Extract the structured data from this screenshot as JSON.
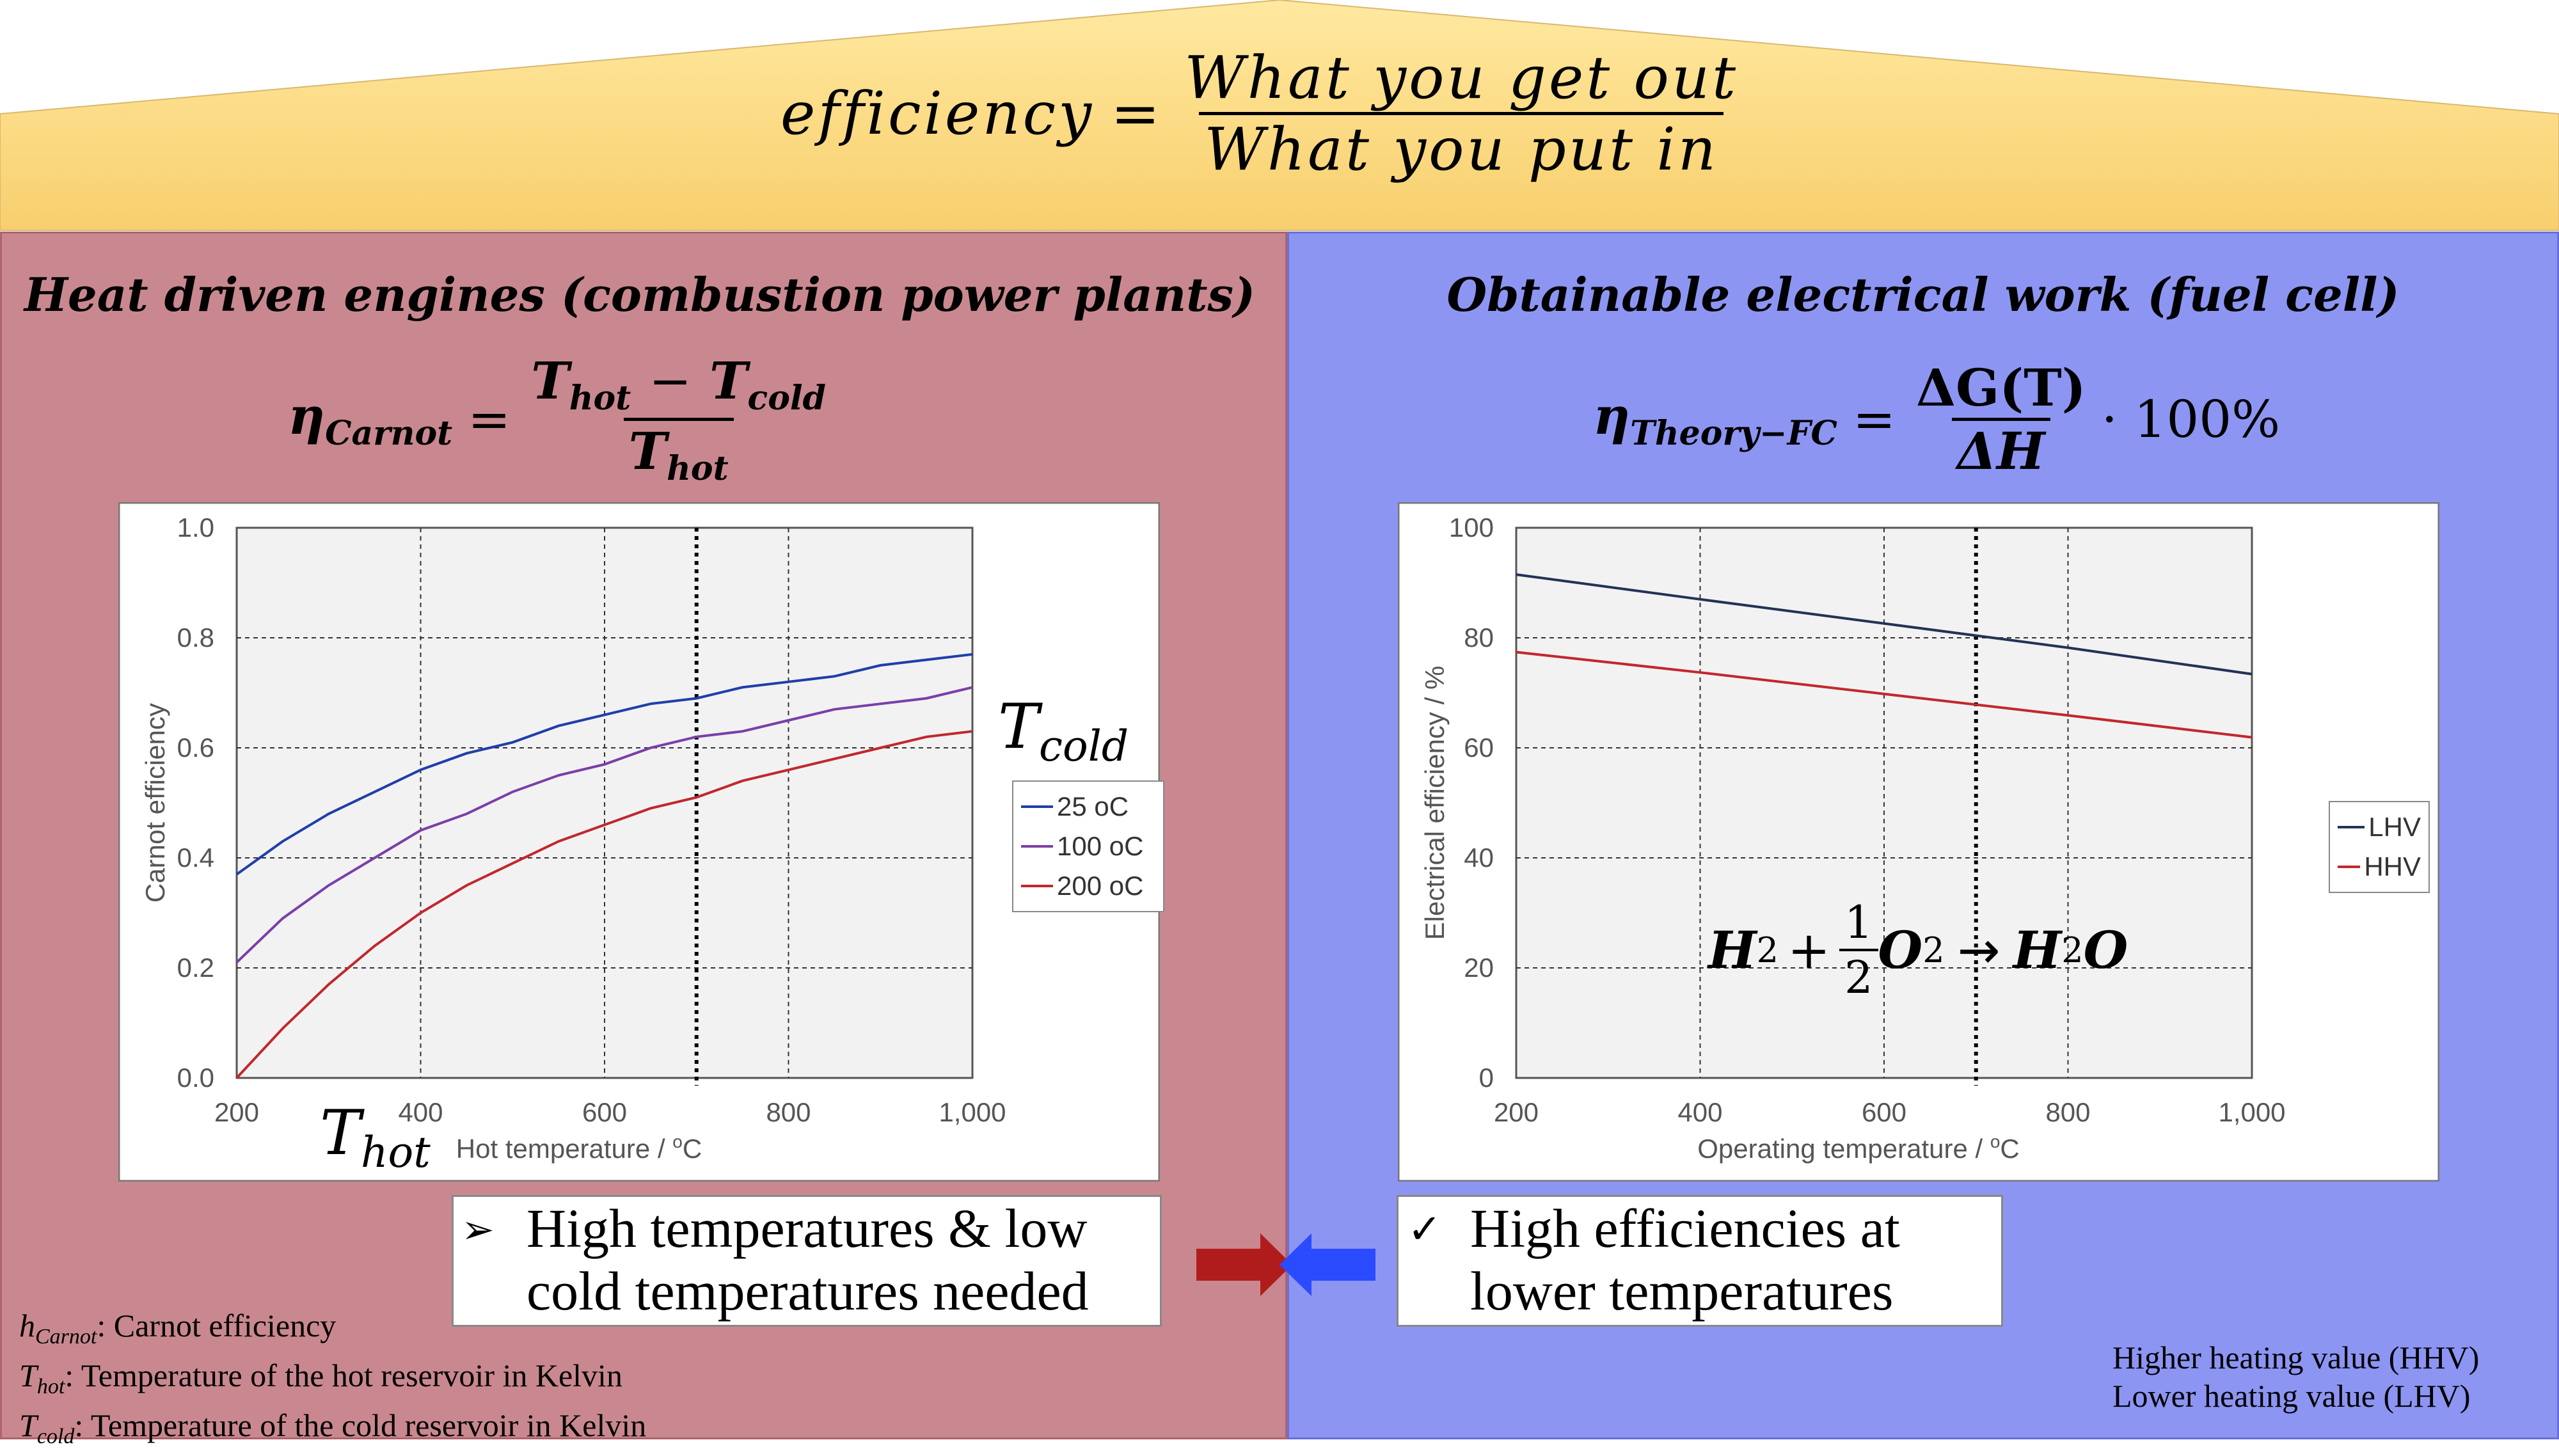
{
  "colors": {
    "banner_top": "#ffe9a0",
    "banner_bottom": "#f8cf6e",
    "left_panel": "#c9888f",
    "right_panel": "#8d95f3",
    "plot_bg": "#f2f2f2",
    "series_blue": "#1f3fa8",
    "series_purple": "#7a3fa8",
    "series_red": "#c0282d",
    "series_navy": "#223355",
    "arrow_red": "#b01c1c",
    "arrow_blue": "#2a4bff"
  },
  "banner": {
    "lhs": "efficiency",
    "equals": "=",
    "numerator": "What you get out",
    "denominator": "What you put in"
  },
  "left": {
    "title": "Heat driven engines (combustion power plants)",
    "formula": {
      "lhs": "η",
      "lhs_sub": "Carnot",
      "equals": "=",
      "num_a": "T",
      "num_a_sub": "hot",
      "minus": "−",
      "num_b": "T",
      "num_b_sub": "cold",
      "den": "T",
      "den_sub": "hot"
    },
    "t_cold_label": {
      "base": "T",
      "sub": "cold"
    },
    "t_hot_label": {
      "base": "T",
      "sub": "hot"
    },
    "callout": {
      "bullet": "➢",
      "line1": "High temperatures & low",
      "line2": "cold temperatures needed"
    },
    "notes": [
      {
        "sym": "h",
        "sub": "Carnot",
        "text": ": Carnot efficiency"
      },
      {
        "sym": "T",
        "sub": "hot",
        "text": ": Temperature of the hot reservoir in Kelvin"
      },
      {
        "sym": "T",
        "sub": "cold",
        "text": ": Temperature of the cold reservoir in Kelvin"
      }
    ]
  },
  "right": {
    "title": "Obtainable electrical work (fuel cell)",
    "formula": {
      "lhs": "η",
      "lhs_sub": "Theory−FC",
      "equals": "=",
      "num": "ΔG(T)",
      "den": "ΔH",
      "tail": "· 100%"
    },
    "reaction": {
      "h": "H",
      "two": "2",
      "plus": "+",
      "half_num": "1",
      "half_den": "2",
      "o": "O",
      "arrow": "→",
      "product_h": "H",
      "product_two": "2",
      "product_o": "O"
    },
    "callout": {
      "bullet": "✓",
      "line1": "High efficiencies at",
      "line2": "lower temperatures"
    },
    "notes": [
      "Higher heating value (HHV)",
      "Lower heating value (LHV)"
    ]
  },
  "chart_data": [
    {
      "type": "line",
      "title": "",
      "xlabel": "Hot temperature / ",
      "xlabel_unit_sup": "o",
      "xlabel_unit": "C",
      "ylabel": "Carnot efficiency",
      "xlim": [
        200,
        1000
      ],
      "ylim": [
        0,
        1
      ],
      "xticks": [
        200,
        400,
        600,
        800,
        1000
      ],
      "xtick_labels": [
        "200",
        "400",
        "600",
        "800",
        "1,000"
      ],
      "yticks": [
        0,
        0.2,
        0.4,
        0.6,
        0.8,
        1.0
      ],
      "ytick_labels": [
        "0.0",
        "0.2",
        "0.4",
        "0.6",
        "0.8",
        "1.0"
      ],
      "grid": true,
      "marker_line_x": 700,
      "legend_position": "right",
      "x": [
        200,
        250,
        300,
        350,
        400,
        450,
        500,
        550,
        600,
        650,
        700,
        750,
        800,
        850,
        900,
        950,
        1000
      ],
      "series": [
        {
          "name": "25 oC",
          "color": "#1f3fa8",
          "values": [
            0.37,
            0.43,
            0.48,
            0.52,
            0.56,
            0.59,
            0.61,
            0.64,
            0.66,
            0.68,
            0.69,
            0.71,
            0.72,
            0.73,
            0.75,
            0.76,
            0.77
          ]
        },
        {
          "name": "100 oC",
          "color": "#7a3fa8",
          "values": [
            0.21,
            0.29,
            0.35,
            0.4,
            0.45,
            0.48,
            0.52,
            0.55,
            0.57,
            0.6,
            0.62,
            0.63,
            0.65,
            0.67,
            0.68,
            0.69,
            0.71
          ]
        },
        {
          "name": "200 oC",
          "color": "#c0282d",
          "values": [
            0.0,
            0.09,
            0.17,
            0.24,
            0.3,
            0.35,
            0.39,
            0.43,
            0.46,
            0.49,
            0.51,
            0.54,
            0.56,
            0.58,
            0.6,
            0.62,
            0.63
          ]
        }
      ]
    },
    {
      "type": "line",
      "title": "",
      "xlabel": "Operating temperature / ",
      "xlabel_unit_sup": "o",
      "xlabel_unit": "C",
      "ylabel": "Electrical efficiency / %",
      "xlim": [
        200,
        1000
      ],
      "ylim": [
        0,
        100
      ],
      "xticks": [
        200,
        400,
        600,
        800,
        1000
      ],
      "xtick_labels": [
        "200",
        "400",
        "600",
        "800",
        "1,000"
      ],
      "yticks": [
        0,
        20,
        40,
        60,
        80,
        100
      ],
      "ytick_labels": [
        "0",
        "20",
        "40",
        "60",
        "80",
        "100"
      ],
      "grid": true,
      "marker_line_x": 700,
      "legend_position": "right",
      "x": [
        200,
        400,
        600,
        800,
        1000
      ],
      "series": [
        {
          "name": "LHV",
          "color": "#223355",
          "values": [
            91.5,
            87.0,
            82.6,
            78.2,
            73.4
          ]
        },
        {
          "name": "HHV",
          "color": "#c0282d",
          "values": [
            77.4,
            73.7,
            69.8,
            65.9,
            61.9
          ]
        }
      ]
    }
  ]
}
